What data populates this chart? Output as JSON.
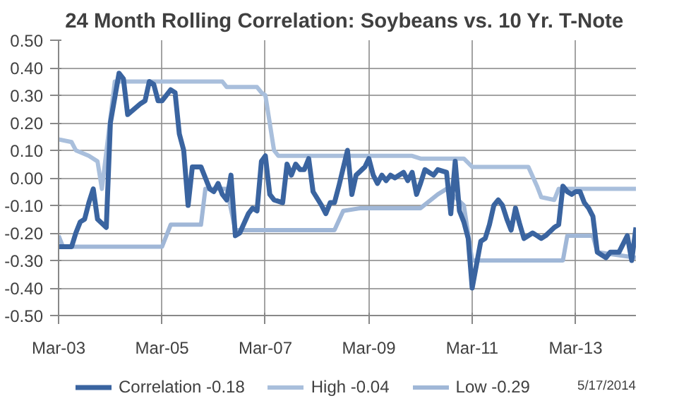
{
  "chart_data": {
    "type": "line",
    "title": "24 Month Rolling Correlation:  Soybeans vs. 10 Yr. T-Note",
    "annotations": [
      "5/17/2014"
    ],
    "xlim": [
      "2003-03",
      "2014-05"
    ],
    "xticks": [
      {
        "value": "2003-03",
        "label": "Mar-03"
      },
      {
        "value": "2005-03",
        "label": "Mar-05"
      },
      {
        "value": "2007-03",
        "label": "Mar-07"
      },
      {
        "value": "2009-03",
        "label": "Mar-09"
      },
      {
        "value": "2011-03",
        "label": "Mar-11"
      },
      {
        "value": "2013-03",
        "label": "Mar-13"
      }
    ],
    "ylim": [
      -0.5,
      0.5
    ],
    "yticks": [
      {
        "value": -0.5,
        "label": "-0.50"
      },
      {
        "value": -0.4,
        "label": "-0.40"
      },
      {
        "value": -0.3,
        "label": "-0.30"
      },
      {
        "value": -0.2,
        "label": "-0.20"
      },
      {
        "value": -0.1,
        "label": "-0.10"
      },
      {
        "value": 0,
        "label": "0.00"
      },
      {
        "value": 0.1,
        "label": "0.10"
      },
      {
        "value": 0.2,
        "label": "0.20"
      },
      {
        "value": 0.3,
        "label": "0.30"
      },
      {
        "value": 0.4,
        "label": "0.40"
      },
      {
        "value": 0.5,
        "label": "0.50"
      }
    ],
    "grid": true,
    "legend": "bottom",
    "marker": "none",
    "line_style": "solid",
    "series": [
      {
        "name": "Correlation -0.18",
        "color": "#3a64a0",
        "x": [
          "2003-03",
          "2003-06",
          "2003-07",
          "2003-08",
          "2003-09",
          "2003-10",
          "2003-11",
          "2003-12",
          "2004-02",
          "2004-03",
          "2004-05",
          "2004-06",
          "2004-07",
          "2004-10",
          "2004-11",
          "2004-12",
          "2005-01",
          "2005-02",
          "2005-03",
          "2005-05",
          "2005-06",
          "2005-07",
          "2005-08",
          "2005-09",
          "2005-10",
          "2005-12",
          "2006-02",
          "2006-03",
          "2006-04",
          "2006-05",
          "2006-06",
          "2006-07",
          "2006-08",
          "2006-09",
          "2006-11",
          "2006-12",
          "2007-01",
          "2007-02",
          "2007-03",
          "2007-04",
          "2007-05",
          "2007-07",
          "2007-08",
          "2007-09",
          "2007-10",
          "2007-11",
          "2007-12",
          "2008-01",
          "2008-02",
          "2008-04",
          "2008-05",
          "2008-06",
          "2008-07",
          "2008-08",
          "2008-10",
          "2008-11",
          "2008-12",
          "2009-02",
          "2009-03",
          "2009-04",
          "2009-05",
          "2009-06",
          "2009-07",
          "2009-08",
          "2009-09",
          "2009-11",
          "2009-12",
          "2010-01",
          "2010-02",
          "2010-03",
          "2010-04",
          "2010-05",
          "2010-06",
          "2010-07",
          "2010-09",
          "2010-10",
          "2010-11",
          "2010-12",
          "2011-01",
          "2011-02",
          "2011-03",
          "2011-05",
          "2011-06",
          "2011-07",
          "2011-08",
          "2011-09",
          "2011-10",
          "2011-11",
          "2011-12",
          "2012-01",
          "2012-02",
          "2012-03",
          "2012-05",
          "2012-06",
          "2012-07",
          "2012-08",
          "2012-10",
          "2012-11",
          "2012-12",
          "2013-01",
          "2013-02",
          "2013-03",
          "2013-04",
          "2013-05",
          "2013-06",
          "2013-07",
          "2013-08",
          "2013-10",
          "2013-11",
          "2014-01",
          "2014-03",
          "2014-04",
          "2014-05"
        ],
        "values": [
          -0.25,
          -0.25,
          -0.2,
          -0.16,
          -0.15,
          -0.09,
          -0.04,
          -0.15,
          -0.18,
          0.2,
          0.38,
          0.36,
          0.23,
          0.27,
          0.28,
          0.35,
          0.34,
          0.28,
          0.28,
          0.32,
          0.31,
          0.16,
          0.1,
          -0.1,
          0.04,
          0.04,
          -0.04,
          -0.05,
          -0.02,
          -0.06,
          -0.08,
          0.01,
          -0.21,
          -0.2,
          -0.13,
          -0.11,
          -0.12,
          0.06,
          0.08,
          -0.06,
          -0.08,
          -0.09,
          0.05,
          0.01,
          0.05,
          0.03,
          0.03,
          0.07,
          -0.05,
          -0.1,
          -0.13,
          -0.09,
          -0.09,
          -0.03,
          0.1,
          -0.06,
          0.01,
          0.04,
          0.07,
          0.01,
          -0.02,
          0.01,
          -0.01,
          0.01,
          0.0,
          0.02,
          -0.01,
          0.02,
          -0.06,
          -0.02,
          0.03,
          0.02,
          0.01,
          0.03,
          0.02,
          -0.13,
          0.06,
          -0.12,
          -0.16,
          -0.22,
          -0.4,
          -0.23,
          -0.22,
          -0.17,
          -0.1,
          -0.08,
          -0.1,
          -0.15,
          -0.19,
          -0.11,
          -0.17,
          -0.22,
          -0.2,
          -0.21,
          -0.22,
          -0.21,
          -0.18,
          -0.17,
          -0.03,
          -0.05,
          -0.06,
          -0.05,
          -0.05,
          -0.09,
          -0.11,
          -0.14,
          -0.27,
          -0.29,
          -0.27,
          -0.27,
          -0.21,
          -0.3,
          -0.18
        ]
      },
      {
        "name": "High -0.04",
        "color": "#a9bfdc",
        "x": [
          "2003-03",
          "2003-06",
          "2003-07",
          "2003-10",
          "2003-12",
          "2004-01",
          "2004-04",
          "2006-05",
          "2006-06",
          "2007-01",
          "2007-02",
          "2007-03",
          "2007-05",
          "2007-06",
          "2010-01",
          "2010-03",
          "2011-01",
          "2011-03",
          "2012-04",
          "2012-06",
          "2012-07",
          "2012-10",
          "2012-11",
          "2014-05"
        ],
        "values": [
          0.14,
          0.13,
          0.1,
          0.08,
          0.06,
          -0.04,
          0.35,
          0.35,
          0.33,
          0.33,
          0.31,
          0.3,
          0.1,
          0.08,
          0.08,
          0.07,
          0.07,
          0.04,
          0.04,
          -0.03,
          -0.07,
          -0.08,
          -0.04,
          -0.04
        ]
      },
      {
        "name": "Low -0.29",
        "color": "#a0b7d7",
        "x": [
          "2003-03",
          "2003-04",
          "2005-03",
          "2005-05",
          "2005-12",
          "2006-01",
          "2006-06",
          "2006-08",
          "2008-07",
          "2008-09",
          "2009-01",
          "2010-03",
          "2010-07",
          "2010-09",
          "2011-01",
          "2011-03",
          "2012-12",
          "2013-01",
          "2013-07",
          "2013-08",
          "2014-05"
        ],
        "values": [
          -0.21,
          -0.25,
          -0.25,
          -0.17,
          -0.17,
          -0.04,
          -0.04,
          -0.19,
          -0.19,
          -0.12,
          -0.11,
          -0.11,
          -0.06,
          -0.04,
          -0.1,
          -0.3,
          -0.3,
          -0.21,
          -0.21,
          -0.27,
          -0.29
        ]
      }
    ]
  }
}
